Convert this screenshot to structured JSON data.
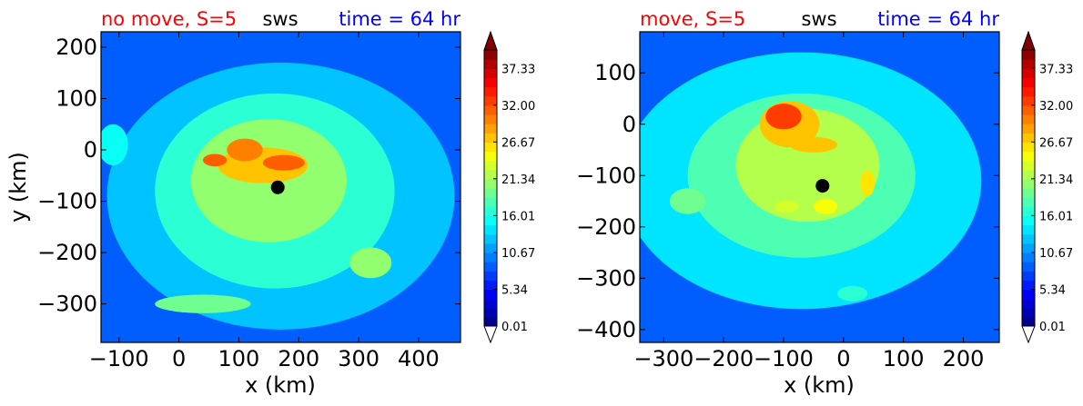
{
  "chart_data": [
    {
      "type": "heatmap",
      "title_left": "no move, S=5",
      "title_center": "sws",
      "title_right": "time = 64 hr",
      "xlabel": "x (km)",
      "ylabel": "y (km)",
      "xlim": [
        -130,
        470
      ],
      "ylim": [
        -375,
        230
      ],
      "xticks": [
        "−100",
        "0",
        "100",
        "200",
        "300",
        "400"
      ],
      "xtick_values": [
        -100,
        0,
        100,
        200,
        300,
        400
      ],
      "yticks": [
        "200",
        "100",
        "0",
        "−100",
        "−200",
        "−300"
      ],
      "ytick_values": [
        200,
        100,
        0,
        -100,
        -200,
        -300
      ],
      "marker": {
        "x": 165,
        "y": -73
      },
      "blobs": [
        {
          "x": 170,
          "y": -90,
          "rx": 290,
          "ry": 260,
          "v": 13
        },
        {
          "x": 160,
          "y": -80,
          "rx": 200,
          "ry": 190,
          "v": 17
        },
        {
          "x": 150,
          "y": -60,
          "rx": 130,
          "ry": 120,
          "v": 21
        },
        {
          "x": 140,
          "y": -30,
          "rx": 75,
          "ry": 35,
          "v": 27
        },
        {
          "x": 110,
          "y": 0,
          "rx": 30,
          "ry": 22,
          "v": 30
        },
        {
          "x": 175,
          "y": -25,
          "rx": 35,
          "ry": 15,
          "v": 31
        },
        {
          "x": 60,
          "y": -20,
          "rx": 20,
          "ry": 12,
          "v": 31
        },
        {
          "x": 320,
          "y": -220,
          "rx": 35,
          "ry": 30,
          "v": 21
        },
        {
          "x": 40,
          "y": -300,
          "rx": 80,
          "ry": 18,
          "v": 19
        },
        {
          "x": -110,
          "y": 10,
          "rx": 25,
          "ry": 40,
          "v": 16
        }
      ]
    },
    {
      "type": "heatmap",
      "title_left": "move, S=5",
      "title_center": "sws",
      "title_right": "time = 64 hr",
      "xlabel": "x (km)",
      "ylabel": "",
      "xlim": [
        -340,
        260
      ],
      "ylim": [
        -425,
        180
      ],
      "xticks": [
        "−300",
        "−200",
        "−100",
        "0",
        "100",
        "200"
      ],
      "xtick_values": [
        -300,
        -200,
        -100,
        0,
        100,
        200
      ],
      "yticks": [
        "100",
        "0",
        "−100",
        "−200",
        "−300",
        "−400"
      ],
      "ytick_values": [
        100,
        0,
        -100,
        -200,
        -300,
        -400
      ],
      "marker": {
        "x": -35,
        "y": -120
      },
      "blobs": [
        {
          "x": -70,
          "y": -110,
          "rx": 300,
          "ry": 250,
          "v": 14
        },
        {
          "x": -70,
          "y": -100,
          "rx": 190,
          "ry": 160,
          "v": 18
        },
        {
          "x": -60,
          "y": -80,
          "rx": 120,
          "ry": 110,
          "v": 22
        },
        {
          "x": -90,
          "y": 0,
          "rx": 50,
          "ry": 45,
          "v": 28
        },
        {
          "x": -100,
          "y": 15,
          "rx": 30,
          "ry": 25,
          "v": 33
        },
        {
          "x": -50,
          "y": -40,
          "rx": 40,
          "ry": 15,
          "v": 28
        },
        {
          "x": 40,
          "y": -115,
          "rx": 12,
          "ry": 25,
          "v": 26
        },
        {
          "x": -260,
          "y": -150,
          "rx": 30,
          "ry": 25,
          "v": 19
        },
        {
          "x": 15,
          "y": -330,
          "rx": 25,
          "ry": 15,
          "v": 17
        },
        {
          "x": -95,
          "y": -160,
          "rx": 20,
          "ry": 12,
          "v": 24
        },
        {
          "x": -30,
          "y": -160,
          "rx": 20,
          "ry": 15,
          "v": 25
        }
      ]
    }
  ],
  "colorbar": {
    "ticks": [
      "37.33",
      "32.00",
      "26.67",
      "21.34",
      "16.01",
      "10.67",
      "5.34",
      "0.01"
    ],
    "tick_values": [
      37.33,
      32.0,
      26.67,
      21.34,
      16.01,
      10.67,
      5.34,
      0.01
    ],
    "vmin": 0.01,
    "vmax": 40.0,
    "levels": 30,
    "colormap": "jet"
  }
}
